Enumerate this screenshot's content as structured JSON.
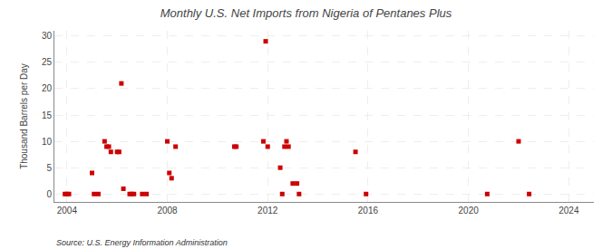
{
  "chart_data": {
    "type": "scatter",
    "title": "Monthly U.S. Net Imports from Nigeria of Pentanes Plus",
    "ylabel": "Thousand Barrels per Day",
    "source": "Source: U.S. Energy Information Administration",
    "color": "#cc0000",
    "marker": "square",
    "grid": true,
    "xlim": [
      2003.5,
      2025.0
    ],
    "ylim": [
      -1.5,
      31
    ],
    "xticks": [
      2004,
      2008,
      2012,
      2016,
      2020,
      2024
    ],
    "yticks": [
      0,
      5,
      10,
      15,
      20,
      25,
      30
    ],
    "x": [
      2003.92,
      2004.0,
      2004.08,
      2005.0,
      2005.08,
      2005.25,
      2005.5,
      2005.58,
      2005.67,
      2005.75,
      2006.0,
      2006.08,
      2006.17,
      2006.25,
      2006.5,
      2006.58,
      2006.67,
      2007.0,
      2007.17,
      2008.0,
      2008.08,
      2008.17,
      2008.33,
      2010.67,
      2010.75,
      2011.83,
      2011.92,
      2012.0,
      2012.5,
      2012.58,
      2012.67,
      2012.75,
      2012.83,
      2013.0,
      2013.17,
      2013.25,
      2015.5,
      2015.92,
      2020.75,
      2022.0,
      2022.42
    ],
    "values": [
      0,
      0,
      0,
      4,
      0,
      0,
      10,
      9,
      9,
      8,
      8,
      8,
      21,
      1,
      0,
      0,
      0,
      0,
      0,
      10,
      4,
      3,
      9,
      9,
      9,
      10,
      29,
      9,
      5,
      0,
      9,
      10,
      9,
      2,
      2,
      0,
      8,
      0,
      0,
      10,
      0
    ]
  }
}
